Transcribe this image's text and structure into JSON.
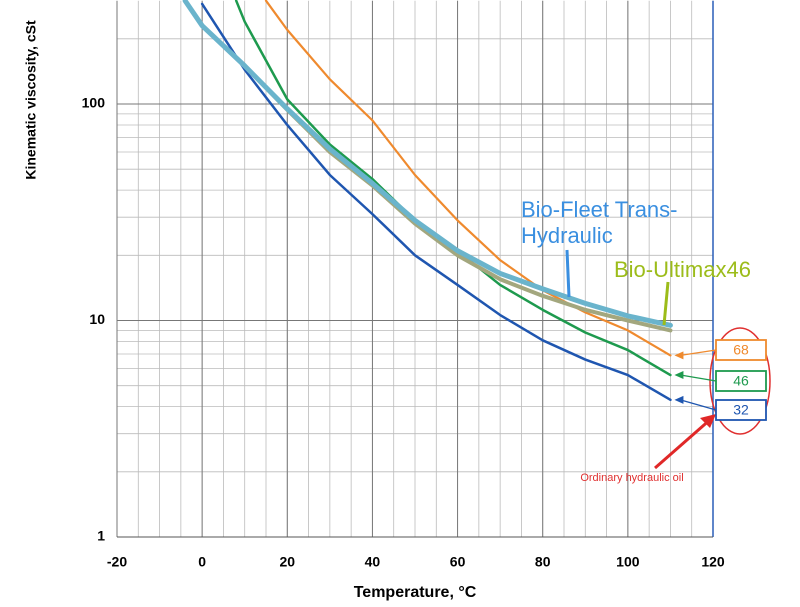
{
  "chart_data": {
    "type": "line",
    "xlabel": "Temperature, °C",
    "ylabel": "Kinematic viscosity, cSt",
    "xlim": [
      -20,
      120
    ],
    "xticks": [
      -20,
      0,
      20,
      40,
      60,
      80,
      100,
      120
    ],
    "ylim": [
      1,
      300
    ],
    "yticks": [
      1,
      10,
      100
    ],
    "log_y": true,
    "grid": true,
    "series": [
      {
        "name": "32",
        "color": "#1f56b0",
        "x": [
          0,
          10,
          20,
          30,
          40,
          50,
          60,
          70,
          80,
          90,
          100,
          110
        ],
        "values": [
          290,
          144,
          80,
          47,
          31,
          20,
          14.6,
          10.6,
          8.1,
          6.6,
          5.6,
          4.3
        ]
      },
      {
        "name": "46",
        "color": "#1e9a4e",
        "x": [
          8,
          10,
          20,
          30,
          40,
          50,
          60,
          70,
          80,
          90,
          100,
          110
        ],
        "values": [
          300,
          240,
          105,
          65,
          45,
          29,
          21,
          14.6,
          11.2,
          8.8,
          7.3,
          5.6
        ]
      },
      {
        "name": "68",
        "color": "#ef8a2e",
        "x": [
          15,
          20,
          30,
          40,
          50,
          60,
          70,
          80,
          90,
          100,
          110
        ],
        "values": [
          300,
          220,
          130,
          84,
          47,
          29,
          19,
          13.8,
          10.9,
          9,
          6.9
        ]
      },
      {
        "name": "Bio-Ultimax46",
        "color": "#a3a77e",
        "x": [
          -4,
          0,
          10,
          20,
          30,
          40,
          50,
          60,
          70,
          80,
          90,
          100,
          110
        ],
        "values": [
          300,
          230,
          150,
          94,
          60,
          42,
          28,
          20,
          15.5,
          13,
          11.2,
          10,
          9
        ]
      },
      {
        "name": "Bio-Fleet Trans-Hydraulic",
        "color": "#6ab4cc",
        "x": [
          -4,
          0,
          10,
          20,
          30,
          40,
          50,
          60,
          70,
          80,
          90,
          100,
          110
        ],
        "values": [
          300,
          230,
          150,
          95,
          62,
          43,
          29,
          21,
          16.5,
          14,
          12,
          10.5,
          9.5
        ]
      }
    ],
    "annotations": [
      "Ordinary hydraulic oil"
    ]
  }
}
